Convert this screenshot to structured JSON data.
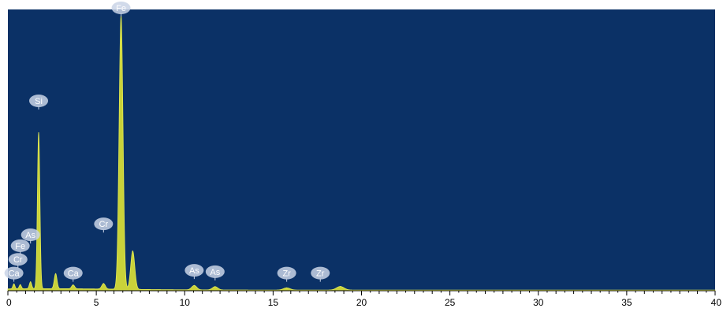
{
  "chart_data": {
    "type": "line",
    "title": "",
    "xlabel": "",
    "ylabel": "",
    "xlim": [
      0,
      40
    ],
    "ylim": [
      0,
      100
    ],
    "grid": false,
    "colors": {
      "background": "#0B3166",
      "spectrum_fill": "#C9D23A",
      "spectrum_stroke": "#E2EA52",
      "label_bubble": "#C9D4E6",
      "label_text": "#FFFFFF",
      "axis": "#000000"
    },
    "x_ticks": [
      {
        "value": 0,
        "label": "0"
      },
      {
        "value": 5,
        "label": "5"
      },
      {
        "value": 10,
        "label": "10"
      },
      {
        "value": 15,
        "label": "15"
      },
      {
        "value": 20,
        "label": "20"
      },
      {
        "value": 25,
        "label": "25"
      },
      {
        "value": 30,
        "label": "30"
      },
      {
        "value": 35,
        "label": "35"
      },
      {
        "value": 40,
        "label": "40"
      }
    ],
    "series": [
      {
        "peaks": [
          {
            "energy": 0.34,
            "intensity": 1.8
          },
          {
            "energy": 0.7,
            "intensity": 1.5
          },
          {
            "energy": 1.28,
            "intensity": 2.5
          },
          {
            "energy": 1.74,
            "intensity": 57
          },
          {
            "energy": 2.7,
            "intensity": 5.5
          },
          {
            "energy": 3.69,
            "intensity": 1.4
          },
          {
            "energy": 5.41,
            "intensity": 2.0
          },
          {
            "energy": 6.4,
            "intensity": 100
          },
          {
            "energy": 7.06,
            "intensity": 14
          },
          {
            "energy": 10.54,
            "intensity": 1.6
          },
          {
            "energy": 11.72,
            "intensity": 1.2
          },
          {
            "energy": 15.77,
            "intensity": 0.8
          },
          {
            "energy": 18.8,
            "intensity": 1.3
          }
        ]
      }
    ],
    "element_labels": [
      {
        "text": "Fe",
        "energy": 6.4,
        "height": 100
      },
      {
        "text": "Si",
        "energy": 1.74,
        "height": 66
      },
      {
        "text": "Cr",
        "energy": 5.41,
        "height": 21
      },
      {
        "text": "As",
        "energy": 1.28,
        "height": 17
      },
      {
        "text": "Fe",
        "energy": 0.7,
        "height": 13
      },
      {
        "text": "Cr",
        "energy": 0.57,
        "height": 8
      },
      {
        "text": "Ca",
        "energy": 0.34,
        "height": 3
      },
      {
        "text": "Ca",
        "energy": 3.69,
        "height": 3
      },
      {
        "text": "As",
        "energy": 10.54,
        "height": 4
      },
      {
        "text": "As",
        "energy": 11.72,
        "height": 3.5
      },
      {
        "text": "Zr",
        "energy": 15.77,
        "height": 3
      },
      {
        "text": "Zr",
        "energy": 17.67,
        "height": 3
      }
    ]
  }
}
